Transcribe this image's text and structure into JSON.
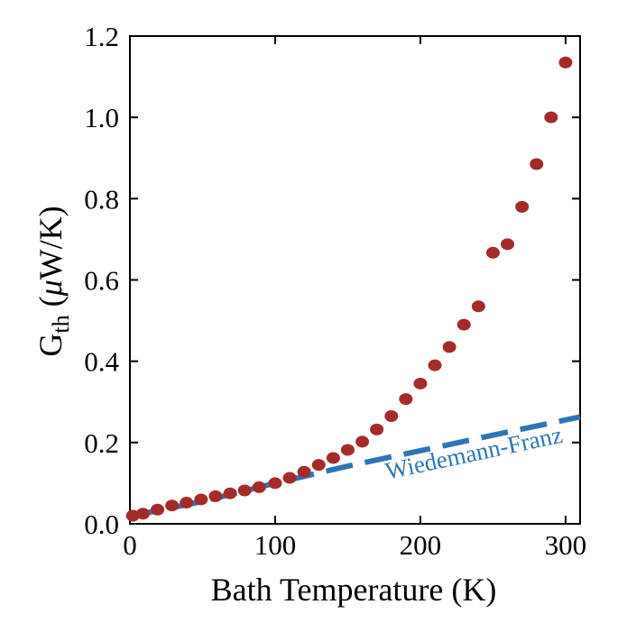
{
  "chart_data": {
    "type": "scatter",
    "xlabel": "Bath Temperature (K)",
    "ylabel_main": "G",
    "ylabel_sub": "th",
    "ylabel_unit_open": " (",
    "ylabel_unit_mu": "μ",
    "ylabel_unit_rest": "W/K)",
    "xlim": [
      0,
      310
    ],
    "ylim": [
      0,
      1.2
    ],
    "x_ticks": [
      0,
      100,
      200,
      300
    ],
    "x_tick_labels": [
      "0",
      "100",
      "200",
      "300"
    ],
    "y_ticks": [
      0,
      0.2,
      0.4,
      0.6,
      0.8,
      1.0,
      1.2
    ],
    "y_tick_labels": [
      "0.0",
      "0.2",
      "0.4",
      "0.6",
      "0.8",
      "1.0",
      "1.2"
    ],
    "grid": false,
    "series": [
      {
        "type": "scatter",
        "color": "#a52a2a",
        "x": [
          2,
          9,
          19,
          29,
          39,
          49,
          59,
          69,
          79,
          89,
          100,
          110,
          120,
          130,
          140,
          150,
          160,
          170,
          180,
          190,
          200,
          210,
          220,
          230,
          240,
          250,
          260,
          270,
          280,
          290,
          300
        ],
        "y": [
          0.02,
          0.025,
          0.035,
          0.045,
          0.052,
          0.06,
          0.068,
          0.075,
          0.082,
          0.09,
          0.1,
          0.113,
          0.128,
          0.145,
          0.162,
          0.182,
          0.202,
          0.232,
          0.265,
          0.307,
          0.345,
          0.39,
          0.435,
          0.49,
          0.535,
          0.667,
          0.688,
          0.78,
          0.885,
          1.0,
          1.135
        ]
      },
      {
        "type": "line",
        "style": "dashed",
        "color": "#2e75b6",
        "x": [
          2,
          50,
          100,
          150,
          200,
          250,
          310
        ],
        "y": [
          0.02,
          0.055,
          0.1,
          0.142,
          0.18,
          0.218,
          0.263
        ]
      }
    ],
    "annotations": [
      {
        "text": "Wiedemann-Franz",
        "x": 238,
        "y": 0.155,
        "color": "#2e75b6",
        "rotation": -12
      }
    ]
  }
}
